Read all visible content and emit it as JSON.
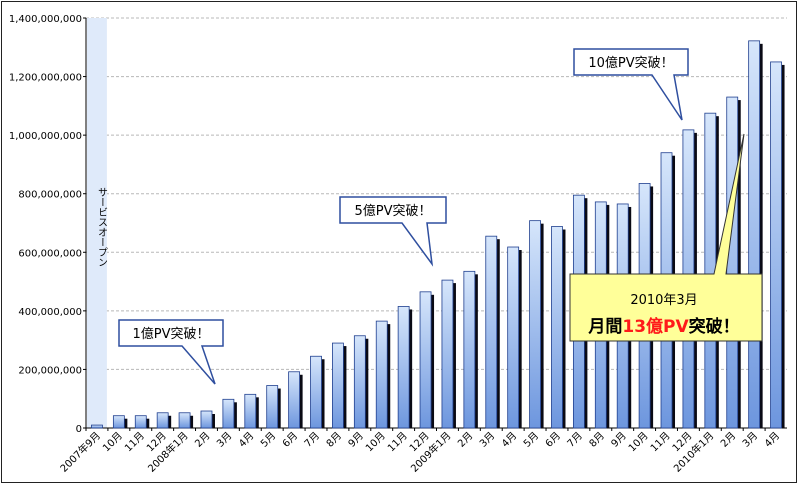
{
  "chart_data": {
    "type": "bar",
    "ylim": [
      0,
      1400000000
    ],
    "yticks": [
      {
        "value": 0,
        "label": "0"
      },
      {
        "value": 200000000,
        "label": "200,000,000"
      },
      {
        "value": 400000000,
        "label": "400,000,000"
      },
      {
        "value": 600000000,
        "label": "600,000,000"
      },
      {
        "value": 800000000,
        "label": "800,000,000"
      },
      {
        "value": 1000000000,
        "label": "1,000,000,000"
      },
      {
        "value": 1200000000,
        "label": "1,200,000,000"
      },
      {
        "value": 1400000000,
        "label": "1,400,000,000"
      }
    ],
    "grid": true,
    "categories": [
      "2007年9月",
      "10月",
      "11月",
      "12月",
      "2008年1月",
      "2月",
      "3月",
      "4月",
      "5月",
      "6月",
      "7月",
      "8月",
      "9月",
      "10月",
      "11月",
      "12月",
      "2009年1月",
      "2月",
      "3月",
      "4月",
      "5月",
      "6月",
      "7月",
      "8月",
      "9月",
      "10月",
      "11月",
      "12月",
      "2010年1月",
      "2月",
      "3月",
      "4月"
    ],
    "values": [
      10000000,
      42000000,
      42000000,
      52000000,
      52000000,
      58000000,
      98000000,
      115000000,
      145000000,
      192000000,
      245000000,
      290000000,
      315000000,
      365000000,
      415000000,
      465000000,
      505000000,
      535000000,
      655000000,
      618000000,
      708000000,
      688000000,
      795000000,
      772000000,
      765000000,
      835000000,
      940000000,
      1018000000,
      1075000000,
      1130000000,
      1322000000,
      1250000000
    ],
    "colors": {
      "bar_top": "#d6e6fb",
      "bar_bottom": "#6d96de",
      "bar_edge": "#1f3f8f",
      "shadow": "#0a0a14",
      "grid": "#b8b8b8",
      "service_band": "#dfeafa"
    },
    "service_open": {
      "label": "サービスオープン"
    },
    "annotations": [
      {
        "text": "1億PV突破！"
      },
      {
        "text": "5億PV突破！"
      },
      {
        "text": "10億PV突破！"
      },
      {
        "line1": "2010年3月",
        "line2_prefix": "月間",
        "line2_highlight": "13億PV",
        "line2_suffix": "突破！",
        "highlight_color": "#ff1a1a"
      }
    ]
  }
}
